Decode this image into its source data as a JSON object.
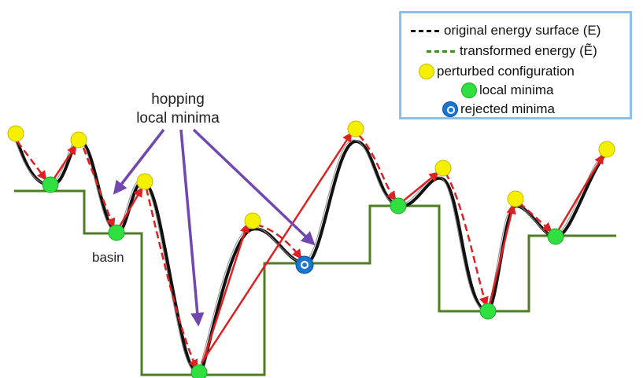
{
  "legend": {
    "original_energy": "original energy surface (E)",
    "transformed_energy": "transformed energy (Ẽ)",
    "perturbed": "perturbed configuration",
    "local_minima": "local minima",
    "rejected_minima": "rejected minima"
  },
  "annotations": {
    "hopping_line1": "hopping",
    "hopping_line2": "local minima",
    "basin": "basin"
  },
  "colors": {
    "original_curve": "#000000",
    "transformed_curve": "#4e7d22",
    "hop_arrows": "#e02020",
    "callout_arrows": "#7048b0",
    "perturbed": "#f4f000",
    "local_minima": "#2fe040",
    "rejected_minima": "#1976d2",
    "legend_border": "#8ec0e6"
  }
}
